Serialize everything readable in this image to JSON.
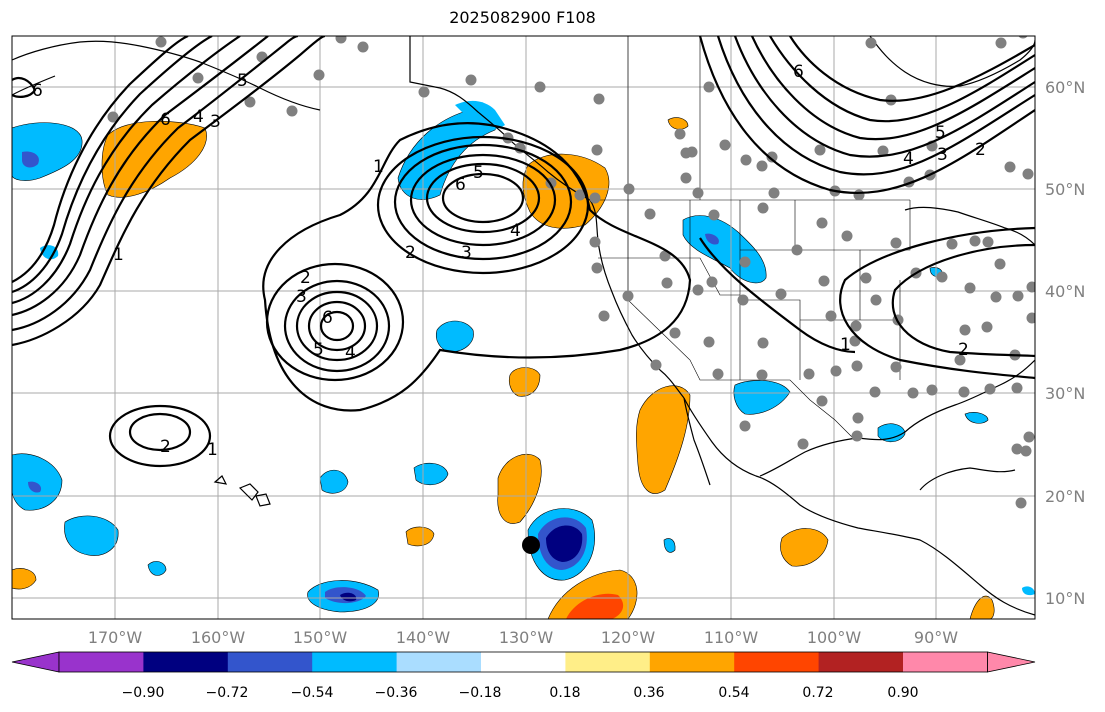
{
  "title": "2025082900 F108",
  "lon_ticks": [
    "170°W",
    "160°W",
    "150°W",
    "140°W",
    "130°W",
    "120°W",
    "110°W",
    "100°W",
    "90°W"
  ],
  "lat_ticks": [
    "60°N",
    "50°N",
    "40°N",
    "30°N",
    "20°N",
    "10°N"
  ],
  "colorbar": {
    "colors": [
      "#9933cc",
      "#000080",
      "#3355cc",
      "#00bbff",
      "#aaddff",
      "#ffffff",
      "#ffee88",
      "#ffa500",
      "#ff4500",
      "#b22222",
      "#ff88aa"
    ],
    "labels": [
      "−0.90",
      "−0.72",
      "−0.54",
      "−0.36",
      "−0.18",
      "0.18",
      "0.36",
      "0.54",
      "0.72",
      "0.90"
    ]
  },
  "contour_labels": [
    "6",
    "6",
    "5",
    "4",
    "3",
    "1",
    "1",
    "5",
    "6",
    "4",
    "3",
    "2",
    "2",
    "3",
    "6",
    "5",
    "4",
    "2",
    "1",
    "6",
    "5",
    "4",
    "3",
    "2",
    "1",
    "2"
  ],
  "chart_data": {
    "type": "map",
    "domain": {
      "lon_range": [
        -180,
        -80
      ],
      "lat_range": [
        8,
        65
      ]
    },
    "grid": true,
    "contour_values_printed": [
      1,
      2,
      3,
      4,
      5,
      6
    ],
    "fill_levels": [
      -0.9,
      -0.72,
      -0.54,
      -0.36,
      -0.18,
      0.18,
      0.36,
      0.54,
      0.72,
      0.9
    ]
  }
}
